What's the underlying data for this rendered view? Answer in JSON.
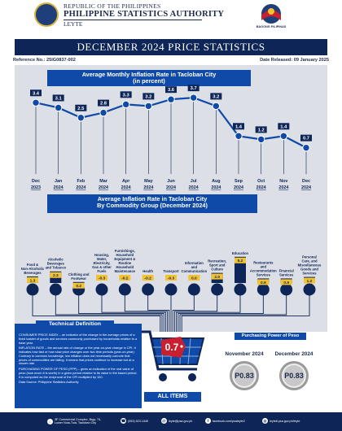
{
  "header": {
    "republic": "REPUBLIC OF THE PHILIPPINES",
    "agency": "PHILIPPINE STATISTICS AUTHORITY",
    "region": "LEYTE",
    "campaign": "BAGONG PILIPINAS"
  },
  "banner": "DECEMBER 2024 PRICE STATISTICS",
  "reference": "Reference No.: 25IG0837-002",
  "released": "Date Released: 09 January 2025",
  "colors": {
    "navy": "#0d2557",
    "blue": "#0f4aa8",
    "panel": "#dcdfe6",
    "accent": "#d7b43a"
  },
  "chart_data": [
    {
      "type": "line",
      "title": "Average Monthly Inflation Rate in Tacloban City",
      "subtitle": "(in percent)",
      "x": [
        "Dec 2023",
        "Jan 2024",
        "Feb 2024",
        "Mar 2024",
        "Apr 2024",
        "May 2024",
        "Jun 2024",
        "Jul 2024",
        "Aug 2024",
        "Sep 2024",
        "Oct 2024",
        "Nov 2024",
        "Dec 2024"
      ],
      "month_labels": [
        "Dec",
        "Jan",
        "Feb",
        "Mar",
        "Apr",
        "May",
        "Jun",
        "Jul",
        "Aug",
        "Sep",
        "Oct",
        "Nov",
        "Dec"
      ],
      "year_labels": [
        "2023",
        "2024",
        "2024",
        "2024",
        "2024",
        "2024",
        "2024",
        "2024",
        "2024",
        "2024",
        "2024",
        "2024",
        "2024"
      ],
      "values": [
        3.4,
        3.1,
        2.5,
        2.8,
        3.3,
        3.2,
        3.6,
        3.7,
        3.2,
        1.4,
        1.2,
        1.4,
        0.7
      ],
      "value_labels": [
        "3.4",
        "3.1",
        "2.5",
        "2.8",
        "3.3",
        "3.2",
        "3.6",
        "3.7",
        "3.2",
        "1.4",
        "1.2",
        "1.4",
        "0.7"
      ],
      "ylim": [
        0,
        4
      ]
    },
    {
      "type": "bar",
      "title": "Average Inflation Rate in Tacloban City",
      "subtitle": "By Commodity Group (December 2024)",
      "categories": [
        "Food & Non-Alcoholic Beverages",
        "Alcoholic Beverages and Tobacco",
        "Clothing and Footwear",
        "Housing, Water, Electricity, Gas & other Fuels",
        "Furnishings, Household Equipment & Routine Household Maintenance",
        "Health",
        "Transport",
        "Information and Communication",
        "Recreation, Sport and Culture",
        "Education",
        "Restaurants and Accommodation Services",
        "Financial Services",
        "Personal Care, and Miscellaneous Goods and Services"
      ],
      "values": [
        1.3,
        2.3,
        0.2,
        -0.3,
        -0.2,
        -0.2,
        -0.3,
        0.0,
        2.0,
        5.2,
        0.9,
        0.9,
        1.2
      ],
      "value_labels": [
        "1.3",
        "2.3",
        "0.2",
        "-0.3",
        "-0.2",
        "-0.2",
        "-0.3",
        "0.0",
        "2.0",
        "5.2",
        "0.9",
        "0.9",
        "1.2"
      ],
      "all_items": "0.7",
      "all_items_label": "ALL ITEMS"
    }
  ],
  "definition": {
    "title": "Technical Definition",
    "cpi": "CONSUMER PRICE INDEX – an indicator of the change in the average prices of a fixed basket of goods and services commonly purchased by households relative to a base year.",
    "inflation": "INFLATION RATE – the annual rate of change or the year-on-year change in CPI. It indicates how fast or how slow price changes over two time periods (year-on-year). Contrary to common knowledge, low inflation does not necessarily connote that prices of commodities are falling. It means that prices continue to increase but at a slower rate.",
    "ppp": "PURCHASING POWER OF PESO (PPP) – gives an indication of the real value of peso (how much it is worth) in a given period relative to its value in the based period. It is computed as the reciprocal of the CPI multiplied by 100.",
    "source": "Data Source: Philippine Statistics Authority"
  },
  "purchasing_power": {
    "title": "Purchasing Power of Peso",
    "items": [
      {
        "month": "November 2024",
        "value": "P0.83"
      },
      {
        "month": "December 2024",
        "value": "P0.83"
      }
    ]
  },
  "footer": {
    "address": "3F Commercial Complex, Brgy. 74, Lower Nula-Tula, Tacloban City",
    "phone": "(053) 523-1340",
    "email": "leyte@psa.gov.ph",
    "facebook": "facebook.com/psaleyte2",
    "web": "leyte8.psa.gov.ph/leyte"
  }
}
